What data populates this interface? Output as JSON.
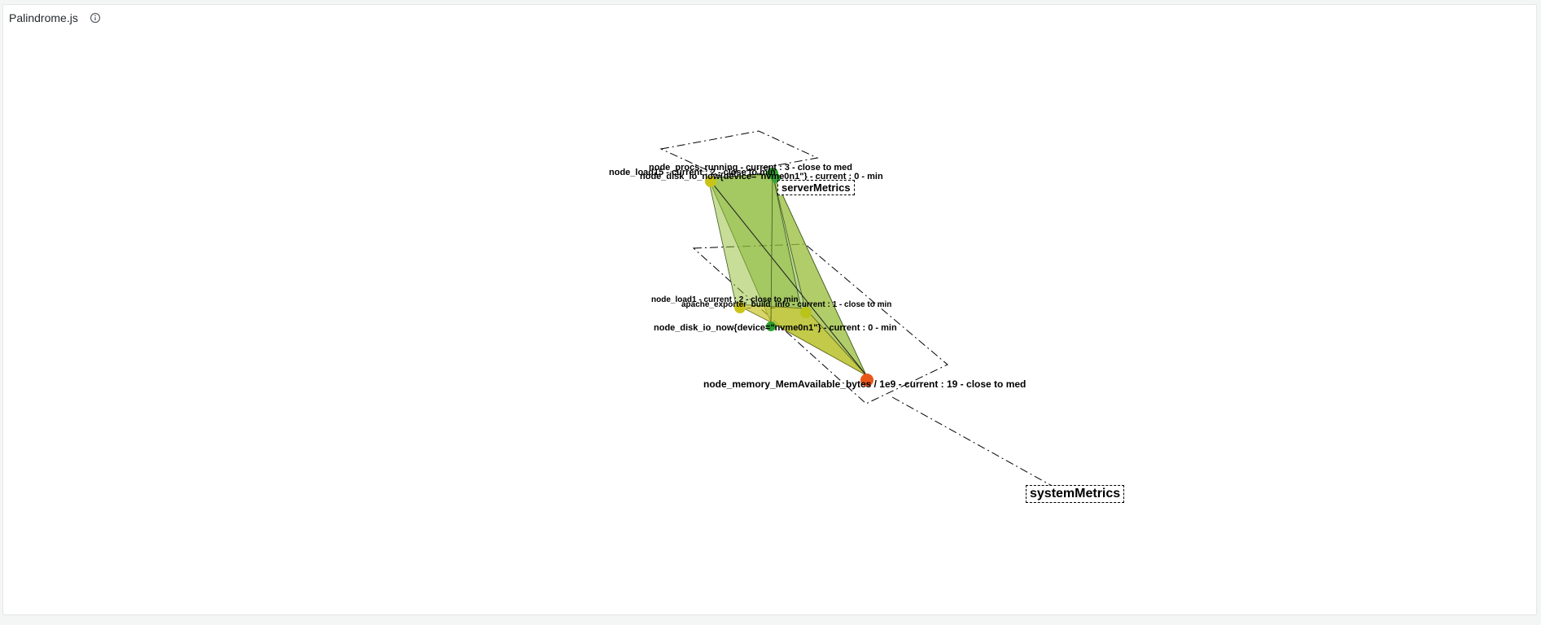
{
  "panel": {
    "title": "Palindrome.js"
  },
  "layers": {
    "server": "serverMetrics",
    "system": "systemMetrics"
  },
  "metrics": {
    "procs_running": "node_procs_running - current : 3  - close to med",
    "load15": "node_load15 - current : 2  - close to min",
    "disk_io_top": "node_disk_io_now{device=\"nvme0n1\"} - current : 0  - min",
    "load1": "node_load1 - current : 2  - close to min",
    "apache_info": "apache_exporter_build_info - current : 1  - close to min",
    "disk_io_bottom": "node_disk_io_now{device=\"nvme0n1\"} - current : 0  - min",
    "mem_available": "node_memory_MemAvailable_bytes / 1e9 - current : 19  - close to med"
  },
  "colors": {
    "status_ok": "#2e9e2e",
    "status_low": "#c9c41a",
    "status_high": "#e8561a",
    "prism_green": "#7fb23a",
    "prism_yellow": "#c7c52a"
  }
}
